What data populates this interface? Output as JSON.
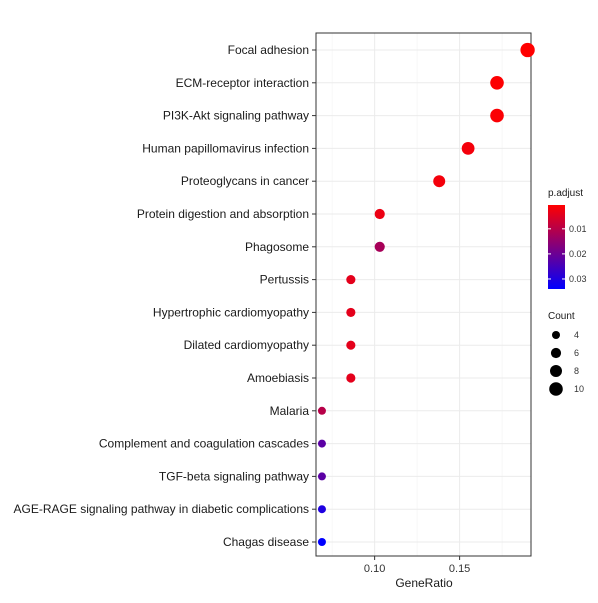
{
  "chart_data": {
    "type": "scatter",
    "title": "",
    "xlabel": "GeneRatio",
    "ylabel": "",
    "xlim": [
      0.0655,
      0.192
    ],
    "x_ticks": [
      {
        "value": 0.1,
        "label": "0.10"
      },
      {
        "value": 0.15,
        "label": "0.15"
      }
    ],
    "grid": true,
    "points": [
      {
        "term": "Focal adhesion",
        "gene_ratio": 0.19,
        "count": 11,
        "p_adjust": 0.0005
      },
      {
        "term": "ECM-receptor interaction",
        "gene_ratio": 0.172,
        "count": 10,
        "p_adjust": 0.0008
      },
      {
        "term": "PI3K-Akt signaling pathway",
        "gene_ratio": 0.172,
        "count": 10,
        "p_adjust": 0.001
      },
      {
        "term": "Human papillomavirus infection",
        "gene_ratio": 0.155,
        "count": 9,
        "p_adjust": 0.002
      },
      {
        "term": "Proteoglycans in cancer",
        "gene_ratio": 0.138,
        "count": 8,
        "p_adjust": 0.002
      },
      {
        "term": "Protein digestion and absorption",
        "gene_ratio": 0.103,
        "count": 6,
        "p_adjust": 0.003
      },
      {
        "term": "Phagosome",
        "gene_ratio": 0.103,
        "count": 6,
        "p_adjust": 0.012
      },
      {
        "term": "Pertussis",
        "gene_ratio": 0.086,
        "count": 5,
        "p_adjust": 0.004
      },
      {
        "term": "Hypertrophic cardiomyopathy",
        "gene_ratio": 0.086,
        "count": 5,
        "p_adjust": 0.004
      },
      {
        "term": "Dilated cardiomyopathy",
        "gene_ratio": 0.086,
        "count": 5,
        "p_adjust": 0.004
      },
      {
        "term": "Amoebiasis",
        "gene_ratio": 0.086,
        "count": 5,
        "p_adjust": 0.004
      },
      {
        "term": "Malaria",
        "gene_ratio": 0.069,
        "count": 4,
        "p_adjust": 0.01
      },
      {
        "term": "Complement and coagulation cascades",
        "gene_ratio": 0.069,
        "count": 4,
        "p_adjust": 0.022
      },
      {
        "term": "TGF-beta signaling pathway",
        "gene_ratio": 0.069,
        "count": 4,
        "p_adjust": 0.022
      },
      {
        "term": "AGE-RAGE signaling pathway in diabetic complications",
        "gene_ratio": 0.069,
        "count": 4,
        "p_adjust": 0.03
      },
      {
        "term": "Chagas disease",
        "gene_ratio": 0.069,
        "count": 4,
        "p_adjust": 0.034
      }
    ],
    "color_legend": {
      "title": "p.adjust",
      "range": [
        0.0005,
        0.034
      ],
      "low_color": "#ff0000",
      "high_color": "#0000ff",
      "ticks": [
        {
          "value": 0.01,
          "label": "0.01"
        },
        {
          "value": 0.02,
          "label": "0.02"
        },
        {
          "value": 0.03,
          "label": "0.03"
        }
      ]
    },
    "size_legend": {
      "title": "Count",
      "entries": [
        {
          "value": 4,
          "label": "4"
        },
        {
          "value": 6,
          "label": "6"
        },
        {
          "value": 8,
          "label": "8"
        },
        {
          "value": 10,
          "label": "10"
        }
      ]
    },
    "legend_position": "right"
  }
}
